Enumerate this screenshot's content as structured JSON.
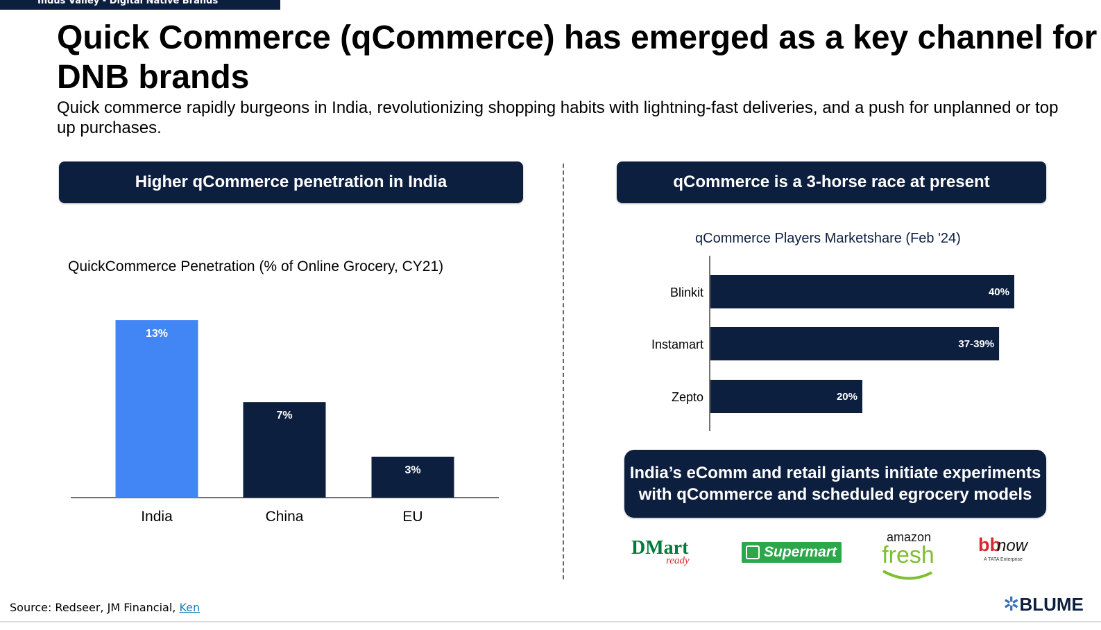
{
  "header": {
    "tab_label": "Indus Valley - Digital Native Brands",
    "title": "Quick Commerce (qCommerce) has emerged as a key channel for DNB brands",
    "subtitle": "Quick commerce rapidly burgeons in India, revolutionizing shopping habits with lightning-fast deliveries, and a push for unplanned or top up purchases."
  },
  "left_panel": {
    "banner": "Higher qCommerce penetration in India"
  },
  "right_panel": {
    "banner": "qCommerce is a 3-horse race at present",
    "bottom_banner": "India’s eComm and retail giants initiate experiments with qCommerce and scheduled egrocery models",
    "logos": [
      {
        "name": "dmart-ready",
        "main": "DMart",
        "sub": "ready"
      },
      {
        "name": "jiomart-supermart",
        "main": "Supermart"
      },
      {
        "name": "amazon-fresh",
        "main": "amazon",
        "sub": "fresh"
      },
      {
        "name": "bbnow",
        "main": "bb",
        "sub": "now",
        "tagline": "A TATA Enterprise"
      }
    ]
  },
  "footer": {
    "source_prefix": "Source: Redseer, JM Financial, ",
    "source_link": "Ken",
    "brand": "BLUME"
  },
  "colors": {
    "navy": "#0d1f3f",
    "india_blue": "#4285f4",
    "jiomart_green": "#2aa84a",
    "amazon_green": "#7dbf2f",
    "dmart_green": "#007a3d",
    "dmart_red": "#d7282f",
    "bb_red": "#d7282f"
  },
  "chart_data": [
    {
      "type": "bar",
      "title": "QuickCommerce Penetration (% of Online Grocery, CY21)",
      "categories": [
        "India",
        "China",
        "EU"
      ],
      "values": [
        13,
        7,
        3
      ],
      "value_labels": [
        "13%",
        "7%",
        "3%"
      ],
      "ylim": [
        0,
        13
      ],
      "xlabel": "",
      "ylabel": "",
      "grid": false
    },
    {
      "type": "bar",
      "orientation": "horizontal",
      "title": "qCommerce Players Marketshare (Feb '24)",
      "categories": [
        "Blinkit",
        "Instamart",
        "Zepto"
      ],
      "values": [
        40,
        38,
        20
      ],
      "value_labels": [
        "40%",
        "37-39%",
        "20%"
      ],
      "xlim": [
        0,
        40
      ],
      "grid": false
    }
  ]
}
